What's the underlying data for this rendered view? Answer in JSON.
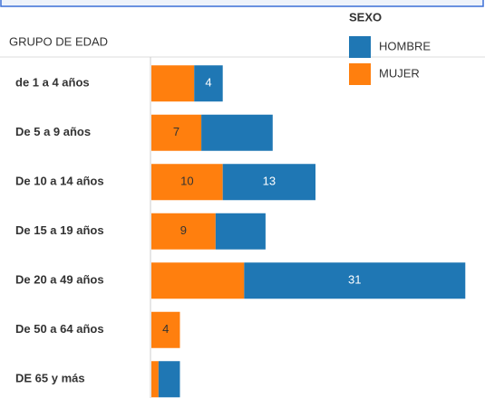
{
  "chart_data": {
    "type": "stacked-bar-horizontal",
    "y_axis_title": "GRUPO DE EDAD",
    "legend_title": "SEXO",
    "categories": [
      "de 1 a 4 años",
      "De 5 a 9 años",
      "De 10 a 14 años",
      "De 15 a 19 años",
      "De 20 a 49 años",
      "De 50 a 64 años",
      "DE 65 y más"
    ],
    "series": [
      {
        "name": "HOMBRE",
        "color": "#1f77b4",
        "values": [
          4,
          10,
          13,
          7,
          31,
          null,
          3
        ],
        "value_labels": [
          "4",
          null,
          "13",
          null,
          "31",
          null,
          null
        ]
      },
      {
        "name": "MUJER",
        "color": "#ff7f0e",
        "values": [
          6,
          7,
          10,
          9,
          13,
          4,
          1
        ],
        "value_labels": [
          null,
          "7",
          "10",
          "9",
          null,
          "4",
          null
        ]
      }
    ]
  }
}
